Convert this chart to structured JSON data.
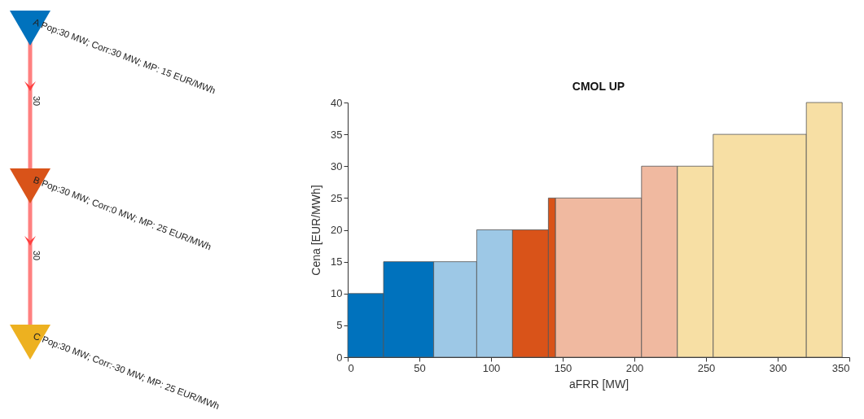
{
  "chart_data": [
    {
      "type": "other",
      "annotations": [
        "A Pop:30 MW; Corr:30 MW; MP: 15 EUR/MWh",
        "B Pop:30 MW; Corr:0 MW; MP: 25 EUR/MWh",
        "C Pop:30 MW; Corr:-30 MW; MP: 25 EUR/MWh",
        "30",
        "30"
      ]
    },
    {
      "type": "histogram",
      "title": "CMOL UP",
      "xlabel": "aFRR [MW]",
      "ylabel": "Cena [EUR/MWh]",
      "bins": [
        0,
        25,
        60,
        90,
        115,
        140,
        145,
        205,
        230,
        255,
        320,
        345
      ],
      "values": [
        10,
        15,
        15,
        20,
        20,
        25,
        25,
        30,
        30,
        35,
        40
      ],
      "colors": [
        "#0072bd",
        "#0072bd",
        "#9dc8e6",
        "#9dc8e6",
        "#d95319",
        "#d95319",
        "#f0b9a0",
        "#f0b9a0",
        "#f7dfa4",
        "#f7dfa4",
        "#f7dfa4"
      ],
      "xlim": [
        0,
        350
      ],
      "xticks": [
        0,
        50,
        100,
        150,
        200,
        250,
        300,
        350
      ],
      "ylim": [
        0,
        40
      ],
      "yticks": [
        0,
        5,
        10,
        15,
        20,
        25,
        30,
        35,
        40
      ],
      "grid": false
    }
  ]
}
